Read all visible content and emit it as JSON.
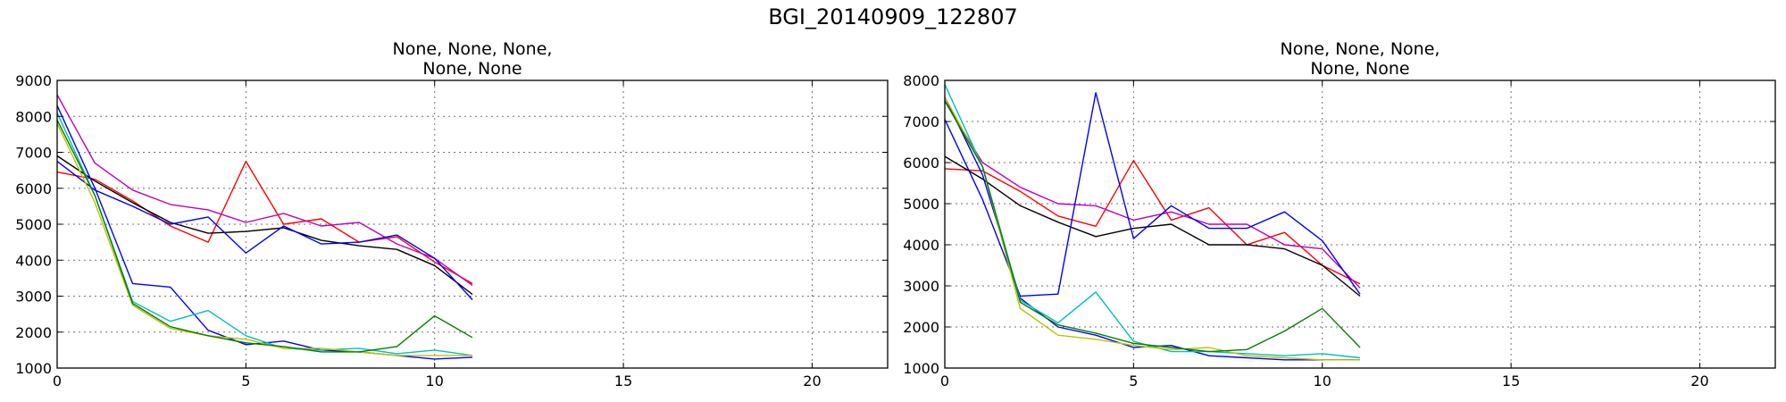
{
  "figure": {
    "title": "BGI_20140909_122807",
    "background": "#ffffff"
  },
  "chart_data": [
    {
      "type": "line",
      "title": "None, None, None,\nNone, None",
      "title_lines": [
        "None, None, None,",
        "None, None"
      ],
      "xlabel": "",
      "ylabel": "",
      "xlim": [
        0,
        22
      ],
      "ylim": [
        1000,
        9000
      ],
      "xticks": [
        0,
        5,
        10,
        15,
        20
      ],
      "yticks": [
        1000,
        2000,
        3000,
        4000,
        5000,
        6000,
        7000,
        8000,
        9000
      ],
      "grid": true,
      "x": [
        0,
        1,
        2,
        3,
        4,
        5,
        6,
        7,
        8,
        9,
        10,
        11
      ],
      "series": [
        {
          "color": "#ff0000",
          "values": [
            6450,
            6250,
            5650,
            4950,
            4500,
            6750,
            5000,
            5150,
            4500,
            4650,
            3950,
            3350
          ]
        },
        {
          "color": "#bf00bf",
          "values": [
            8600,
            6700,
            5950,
            5550,
            5400,
            5050,
            5300,
            4950,
            5050,
            4450,
            4050,
            3300
          ]
        },
        {
          "color": "#000000",
          "values": [
            6900,
            6200,
            5600,
            5050,
            4750,
            4800,
            4900,
            4550,
            4400,
            4300,
            3850,
            3050
          ]
        },
        {
          "color": "#0000ff",
          "values": [
            6750,
            5950,
            5500,
            5000,
            5200,
            4200,
            4950,
            4450,
            4500,
            4700,
            4050,
            2900
          ]
        },
        {
          "color": "#0000ff",
          "values": [
            8300,
            6000,
            3350,
            3250,
            2050,
            1650,
            1750,
            1500,
            1450,
            1350,
            1250,
            1300
          ]
        },
        {
          "color": "#00bfbf",
          "values": [
            8100,
            5800,
            2850,
            2300,
            2600,
            1900,
            1550,
            1500,
            1550,
            1400,
            1500,
            1350
          ]
        },
        {
          "color": "#bfbf00",
          "values": [
            7800,
            5600,
            2750,
            2100,
            1900,
            1800,
            1550,
            1550,
            1450,
            1350,
            1350,
            1350
          ]
        },
        {
          "color": "#008000",
          "values": [
            7900,
            5800,
            2800,
            2150,
            1900,
            1700,
            1600,
            1450,
            1450,
            1600,
            2450,
            1850
          ]
        }
      ]
    },
    {
      "type": "line",
      "title": "None, None, None,\nNone, None",
      "title_lines": [
        "None, None, None,",
        "None, None"
      ],
      "xlabel": "",
      "ylabel": "",
      "xlim": [
        0,
        22
      ],
      "ylim": [
        1000,
        8000
      ],
      "xticks": [
        0,
        5,
        10,
        15,
        20
      ],
      "yticks": [
        1000,
        2000,
        3000,
        4000,
        5000,
        6000,
        7000,
        8000
      ],
      "grid": true,
      "x": [
        0,
        1,
        2,
        3,
        4,
        5,
        6,
        7,
        8,
        9,
        10,
        11
      ],
      "series": [
        {
          "color": "#ff0000",
          "values": [
            5850,
            5800,
            5300,
            4700,
            4450,
            6050,
            4600,
            4900,
            4000,
            4300,
            3500,
            3050
          ]
        },
        {
          "color": "#bf00bf",
          "values": [
            7500,
            6000,
            5400,
            5000,
            4950,
            4600,
            4800,
            4500,
            4500,
            4000,
            3900,
            2950
          ]
        },
        {
          "color": "#000000",
          "values": [
            6150,
            5600,
            4950,
            4550,
            4200,
            4400,
            4500,
            4000,
            4000,
            3900,
            3500,
            2750
          ]
        },
        {
          "color": "#0000ff",
          "values": [
            7050,
            5100,
            2750,
            2800,
            7700,
            4150,
            4950,
            4400,
            4400,
            4800,
            4100,
            2800
          ]
        },
        {
          "color": "#0000ff",
          "values": [
            7600,
            5700,
            2700,
            2000,
            1800,
            1500,
            1550,
            1300,
            1250,
            1200,
            1200,
            1200
          ]
        },
        {
          "color": "#00bfbf",
          "values": [
            7900,
            5900,
            2650,
            2100,
            2850,
            1650,
            1400,
            1400,
            1350,
            1300,
            1350,
            1250
          ]
        },
        {
          "color": "#bfbf00",
          "values": [
            7600,
            5900,
            2450,
            1800,
            1700,
            1550,
            1450,
            1500,
            1300,
            1250,
            1200,
            1200
          ]
        },
        {
          "color": "#008000",
          "values": [
            7500,
            5900,
            2600,
            2050,
            1850,
            1600,
            1500,
            1400,
            1450,
            1900,
            2450,
            1500
          ]
        }
      ]
    }
  ]
}
